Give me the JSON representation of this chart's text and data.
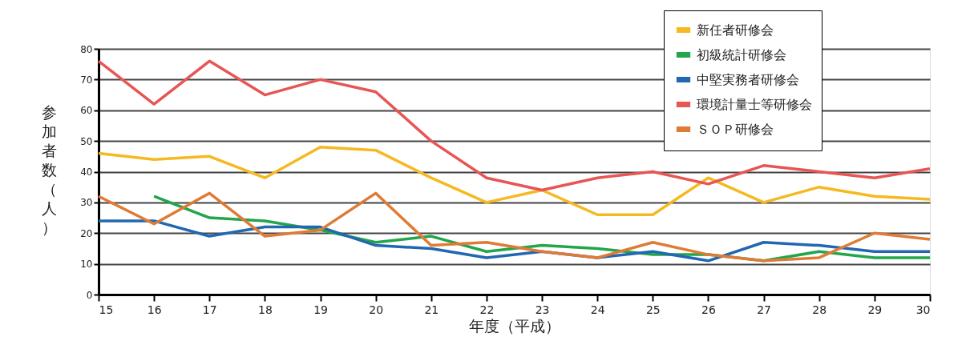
{
  "chart_data": {
    "type": "line",
    "xlabel": "年度（平成）",
    "ylabel": "参加者数（人）",
    "x": [
      15,
      16,
      17,
      18,
      19,
      20,
      21,
      22,
      23,
      24,
      25,
      26,
      27,
      28,
      29,
      30
    ],
    "xlim": [
      15,
      30
    ],
    "xticks": [
      15,
      16,
      17,
      18,
      19,
      20,
      21,
      22,
      23,
      24,
      25,
      26,
      27,
      28,
      29,
      30
    ],
    "ylim": [
      0,
      80
    ],
    "yticks": [
      0,
      10,
      20,
      30,
      40,
      50,
      60,
      70,
      80
    ],
    "grid": "y",
    "legend": "top right",
    "marker": "none",
    "line_style": "solid",
    "series": [
      {
        "name": "新任者研修会",
        "color": "#f5b921",
        "values": [
          46,
          44,
          45,
          38,
          48,
          47,
          38,
          30,
          34,
          26,
          26,
          38,
          30,
          35,
          32,
          31
        ]
      },
      {
        "name": "初級統計研修会",
        "color": "#22a64b",
        "values": [
          null,
          32,
          25,
          24,
          21,
          17,
          19,
          14,
          16,
          15,
          13,
          13,
          11,
          14,
          12,
          12
        ]
      },
      {
        "name": "中堅実務者研修会",
        "color": "#2168b0",
        "values": [
          24,
          24,
          19,
          22,
          22,
          16,
          15,
          12,
          14,
          12,
          14,
          11,
          17,
          16,
          14,
          14
        ]
      },
      {
        "name": "環境計量士等研修会",
        "color": "#e85555",
        "values": [
          76,
          62,
          76,
          65,
          70,
          66,
          50,
          38,
          34,
          38,
          40,
          36,
          42,
          40,
          38,
          41
        ]
      },
      {
        "name": "ＳＯＰ研修会",
        "color": "#e07b35",
        "values": [
          32,
          23,
          33,
          19,
          21,
          33,
          16,
          17,
          14,
          12,
          17,
          13,
          11,
          12,
          20,
          18
        ]
      }
    ]
  }
}
